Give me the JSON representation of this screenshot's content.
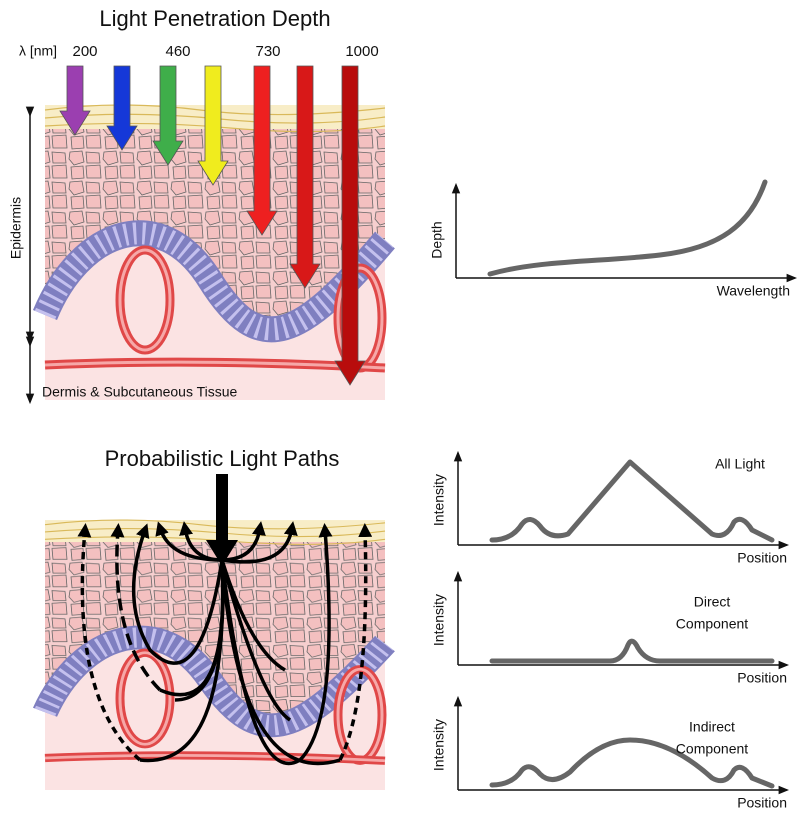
{
  "top": {
    "title": "Light Penetration Depth",
    "wavelength_unit": "λ [nm]",
    "wavelengths": [
      "200",
      "460",
      "730",
      "1000"
    ],
    "epidermis": "Epidermis",
    "dermis": "Dermis & Subcutaneous Tissue",
    "plot": {
      "y_label": "Depth",
      "x_label": "Wavelength"
    }
  },
  "bottom": {
    "title": "Probabilistic Light Paths",
    "plots": [
      {
        "y_label": "Intensity",
        "x_label": "Position",
        "label_lines": [
          "All Light"
        ]
      },
      {
        "y_label": "Intensity",
        "x_label": "Position",
        "label_lines": [
          "Direct",
          "Component"
        ]
      },
      {
        "y_label": "Intensity",
        "x_label": "Position",
        "label_lines": [
          "Indirect",
          "Component"
        ]
      }
    ]
  }
}
